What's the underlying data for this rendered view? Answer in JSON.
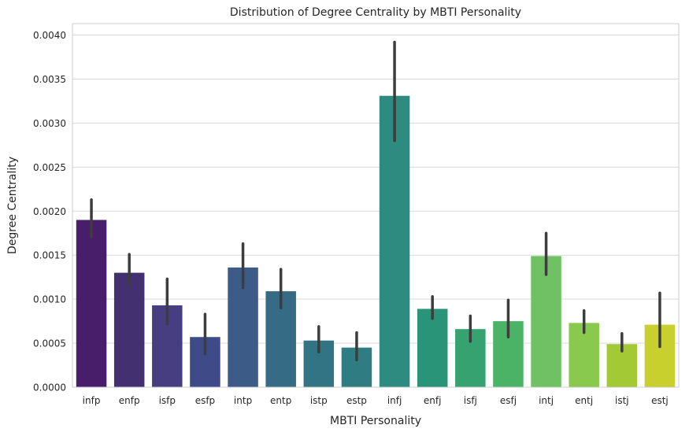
{
  "chart_data": {
    "type": "bar",
    "title": "Distribution of Degree Centrality by MBTI Personality",
    "xlabel": "MBTI Personality",
    "ylabel": "Degree Centrality",
    "ylim": [
      0,
      0.00413
    ],
    "yticks": [
      "0.0000",
      "0.0005",
      "0.0010",
      "0.0015",
      "0.0020",
      "0.0025",
      "0.0030",
      "0.0035",
      "0.0040"
    ],
    "grid": true,
    "palette": "viridis",
    "categories": [
      "infp",
      "enfp",
      "isfp",
      "esfp",
      "intp",
      "entp",
      "istp",
      "estp",
      "infj",
      "enfj",
      "isfj",
      "esfj",
      "intj",
      "entj",
      "istj",
      "estj"
    ],
    "values": [
      0.0019,
      0.0013,
      0.00093,
      0.00057,
      0.00136,
      0.00109,
      0.00053,
      0.00045,
      0.00331,
      0.00089,
      0.00066,
      0.00075,
      0.00149,
      0.00073,
      0.00049,
      0.00071
    ],
    "error_low": [
      0.00171,
      0.00115,
      0.00072,
      0.00038,
      0.00113,
      0.0009,
      0.0004,
      0.00031,
      0.0028,
      0.00078,
      0.00052,
      0.00057,
      0.00128,
      0.00062,
      0.00041,
      0.00046
    ],
    "error_high": [
      0.00213,
      0.00151,
      0.00123,
      0.00083,
      0.00163,
      0.00134,
      0.00069,
      0.00062,
      0.00392,
      0.00103,
      0.00081,
      0.00099,
      0.00175,
      0.00087,
      0.00061,
      0.00107
    ],
    "colors": [
      "#481e6a",
      "#433071",
      "#463e80",
      "#3f4a88",
      "#3c5b87",
      "#356b85",
      "#327483",
      "#2f7d82",
      "#2d8b7f",
      "#2a9478",
      "#36a26f",
      "#4ab366",
      "#70c164",
      "#89c94d",
      "#a3c935",
      "#c7d02c"
    ],
    "error_color": "#3d3d3d"
  }
}
